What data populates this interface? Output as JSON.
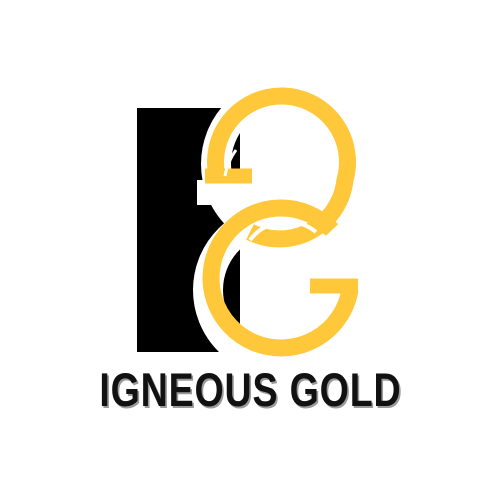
{
  "brand": {
    "name": "IGNEOUS GOLD"
  },
  "logo": {
    "icon": "ig-monogram-icon",
    "colors": {
      "black": "#000000",
      "gold": "#FFC83A",
      "background": "#FFFFFF",
      "text_shadow": "#9A9A9A"
    }
  }
}
